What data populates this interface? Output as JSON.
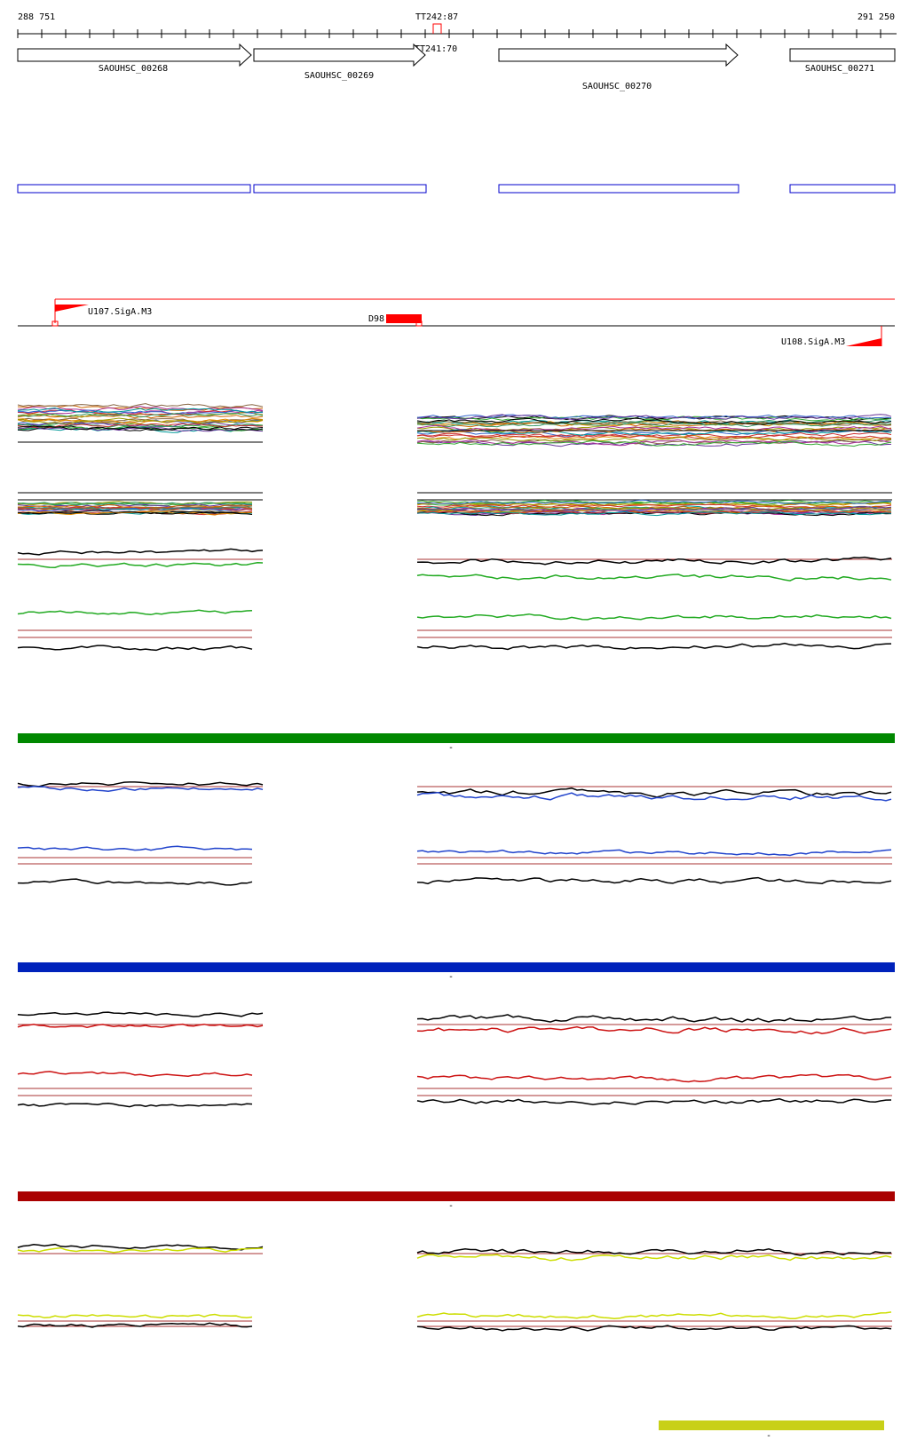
{
  "axis": {
    "start_label": "288 751",
    "end_label": "291 250",
    "start_bp": 288751,
    "end_bp": 291250
  },
  "terminators": [
    {
      "id": "tt242",
      "label": "TT242:87"
    },
    {
      "id": "tt241",
      "label": "TT241:70"
    }
  ],
  "genes": [
    {
      "id": "g268",
      "label": "SAOUHSC_00268",
      "start_bp": 288751,
      "end_bp": 289452,
      "strand": "+"
    },
    {
      "id": "g269",
      "label": "SAOUHSC_00269",
      "start_bp": 289460,
      "end_bp": 289945,
      "strand": "+"
    },
    {
      "id": "g270",
      "label": "SAOUHSC_00270",
      "start_bp": 290153,
      "end_bp": 290838,
      "strand": "+"
    },
    {
      "id": "g271",
      "label": "SAOUHSC_00271",
      "start_bp": 290975,
      "end_bp": 291250,
      "strand": "+"
    }
  ],
  "features": [
    {
      "id": "u107",
      "label": "U107.SigA.M3"
    },
    {
      "id": "d98",
      "label": "D98"
    },
    {
      "id": "u108",
      "label": "U108.SigA.M3"
    }
  ],
  "condition_bars": [
    {
      "id": "green",
      "color": "#008800",
      "marker": "-"
    },
    {
      "id": "blue",
      "color": "#0022bb",
      "marker": "-"
    },
    {
      "id": "red",
      "color": "#aa0000",
      "marker": "-"
    },
    {
      "id": "yellow",
      "color": "#c8d018",
      "marker": "-"
    }
  ],
  "colors": {
    "gene_box": "#0000cc",
    "feature_red": "#ff0000",
    "baseline_red": "#aa3333",
    "green_trace": "#22aa22",
    "blue_trace": "#2244cc",
    "red_trace": "#cc1111",
    "yellow_trace": "#ccdd00"
  }
}
